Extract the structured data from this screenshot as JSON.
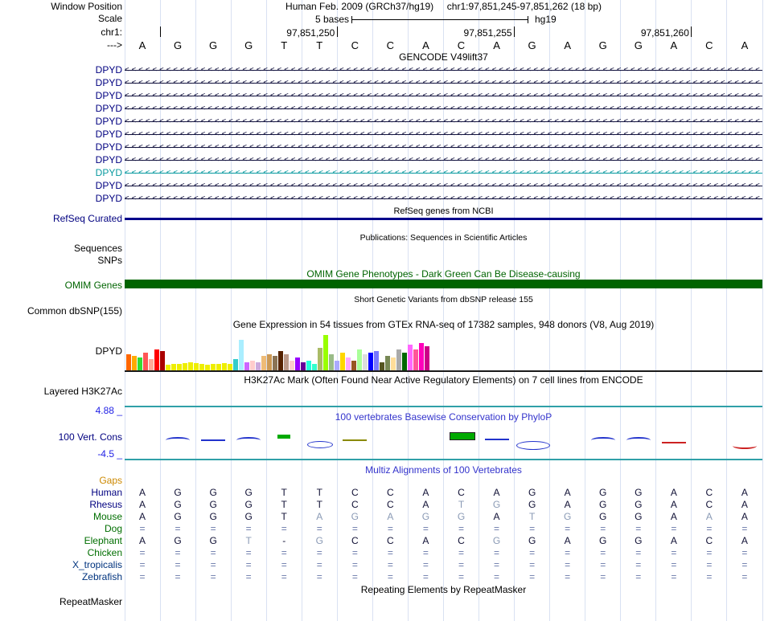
{
  "header": {
    "window_position_label": "Window Position",
    "title": "Human Feb. 2009 (GRCh37/hg19)     chr1:97,851,245-97,851,262 (18 bp)",
    "scale_label": "Scale",
    "scale_value": "5 bases",
    "assembly_label": "hg19",
    "chrom_label": "chr1:",
    "strand_label": "--->",
    "ruler_ticks": [
      {
        "label": "",
        "base_end": 1
      },
      {
        "label": "97,851,250",
        "base_end": 6
      },
      {
        "label": "97,851,255",
        "base_end": 11
      },
      {
        "label": "97,851,260",
        "base_end": 16
      }
    ],
    "reference_bases": [
      "A",
      "G",
      "G",
      "G",
      "T",
      "T",
      "C",
      "C",
      "A",
      "C",
      "A",
      "G",
      "A",
      "G",
      "G",
      "A",
      "C",
      "A"
    ]
  },
  "tracks": {
    "gencode": {
      "title": "GENCODE V49lift37",
      "rows": [
        {
          "label": "DPYD",
          "label_color": "#000080",
          "color": "#12123E"
        },
        {
          "label": "DPYD",
          "label_color": "#000080",
          "color": "#12123E"
        },
        {
          "label": "DPYD",
          "label_color": "#000080",
          "color": "#12123E"
        },
        {
          "label": "DPYD",
          "label_color": "#000080",
          "color": "#12123E"
        },
        {
          "label": "DPYD",
          "label_color": "#000080",
          "color": "#12123E"
        },
        {
          "label": "DPYD",
          "label_color": "#000080",
          "color": "#12123E"
        },
        {
          "label": "DPYD",
          "label_color": "#000080",
          "color": "#12123E"
        },
        {
          "label": "DPYD",
          "label_color": "#000080",
          "color": "#12123E"
        },
        {
          "label": "DPYD",
          "label_color": "#0A9AA0",
          "color": "#0A9AA0"
        },
        {
          "label": "DPYD",
          "label_color": "#000080",
          "color": "#12123E"
        },
        {
          "label": "DPYD",
          "label_color": "#000080",
          "color": "#12123E"
        }
      ]
    },
    "refseq": {
      "label": "RefSeq Curated",
      "title": "RefSeq genes from NCBI",
      "color": "#00008B"
    },
    "publications": {
      "title": "Publications: Sequences in Scientific Articles",
      "sequences_label": "Sequences",
      "snps_label": "SNPs"
    },
    "omim": {
      "label": "OMIM Genes",
      "title": "OMIM Gene Phenotypes - Dark Green Can Be Disease-causing",
      "color": "#006400"
    },
    "dbsnp": {
      "label": "Common dbSNP(155)",
      "title": "Short Genetic Variants from dbSNP release 155"
    },
    "gtex": {
      "label": "DPYD",
      "title": "Gene Expression in 54 tissues from GTEx RNA-seq of 17382 samples, 948 donors (V8, Aug 2019)"
    },
    "h3k27ac": {
      "label": "Layered H3K27Ac",
      "title": "H3K27Ac Mark (Often Found Near Active Regulatory Elements) on 7 cell lines from ENCODE",
      "line_color": "#2FA0A8"
    },
    "phylop": {
      "label": "100 Vert. Cons",
      "title": "100 vertebrates Basewise Conservation by PhyloP",
      "max_label": "4.88 _",
      "min_label": "-4.5 _",
      "marks": [
        {
          "i": 1,
          "v": 0.4,
          "color": "#2233CC",
          "shape": "arc"
        },
        {
          "i": 2,
          "v": 0.25,
          "color": "#2233CC",
          "shape": "line"
        },
        {
          "i": 3,
          "v": 0.3,
          "color": "#2233CC",
          "shape": "arc"
        },
        {
          "i": 4,
          "v": 0.9,
          "color": "#00AA00",
          "shape": "bar_small"
        },
        {
          "i": 5,
          "v": -0.5,
          "color": "#2233CC",
          "shape": "ellipse"
        },
        {
          "i": 6,
          "v": 0.15,
          "color": "#8A8A00",
          "shape": "line"
        },
        {
          "i": 9,
          "v": 1.1,
          "color": "#00AA00",
          "shape": "bar"
        },
        {
          "i": 10,
          "v": 0.3,
          "color": "#2233CC",
          "shape": "line"
        },
        {
          "i": 11,
          "v": -0.7,
          "color": "#2233CC",
          "shape": "ellipse_big"
        },
        {
          "i": 13,
          "v": 0.4,
          "color": "#2233CC",
          "shape": "arc"
        },
        {
          "i": 14,
          "v": 0.35,
          "color": "#2233CC",
          "shape": "arc"
        },
        {
          "i": 15,
          "v": -0.4,
          "color": "#CC2222",
          "shape": "line"
        },
        {
          "i": 17,
          "v": -0.8,
          "color": "#CC2222",
          "shape": "arc_down"
        }
      ]
    },
    "multiz": {
      "title": "Multiz Alignments of 100 Vertebrates",
      "colors": {
        "normal": "#101035",
        "dim": "#8A9AB5",
        "equals": "#6677A8"
      },
      "species": [
        {
          "name": "Gaps",
          "label_color": "#CC8800",
          "cells": [
            "",
            "",
            "",
            "",
            "",
            "",
            "",
            "",
            "",
            "",
            "",
            "",
            "",
            "",
            "",
            "",
            "",
            ""
          ],
          "dim": []
        },
        {
          "name": "Human",
          "label_color": "#000080",
          "cells": [
            "A",
            "G",
            "G",
            "G",
            "T",
            "T",
            "C",
            "C",
            "A",
            "C",
            "A",
            "G",
            "A",
            "G",
            "G",
            "A",
            "C",
            "A"
          ],
          "dim": []
        },
        {
          "name": "Rhesus",
          "label_color": "#000080",
          "cells": [
            "A",
            "G",
            "G",
            "G",
            "T",
            "T",
            "C",
            "C",
            "A",
            "T",
            "G",
            "G",
            "A",
            "G",
            "G",
            "A",
            "C",
            "A"
          ],
          "dim": [
            9,
            10
          ]
        },
        {
          "name": "Mouse",
          "label_color": "#006E00",
          "cells": [
            "A",
            "G",
            "G",
            "G",
            "T",
            "A",
            "G",
            "A",
            "G",
            "G",
            "A",
            "T",
            "G",
            "G",
            "G",
            "A",
            "A",
            "A"
          ],
          "dim": [
            5,
            6,
            7,
            8,
            9,
            11,
            12,
            16
          ]
        },
        {
          "name": "Dog",
          "label_color": "#006E00",
          "cells": [
            "=",
            "=",
            "=",
            "=",
            "=",
            "=",
            "=",
            "=",
            "=",
            "=",
            "=",
            "=",
            "=",
            "=",
            "=",
            "=",
            "=",
            "="
          ],
          "dim": []
        },
        {
          "name": "Elephant",
          "label_color": "#006E00",
          "cells": [
            "A",
            "G",
            "G",
            "T",
            "-",
            "G",
            "C",
            "C",
            "A",
            "C",
            "G",
            "G",
            "A",
            "G",
            "G",
            "A",
            "C",
            "A"
          ],
          "dim": [
            3,
            5,
            10
          ]
        },
        {
          "name": "Chicken",
          "label_color": "#006E00",
          "cells": [
            "=",
            "=",
            "=",
            "=",
            "=",
            "=",
            "=",
            "=",
            "=",
            "=",
            "=",
            "=",
            "=",
            "=",
            "=",
            "=",
            "=",
            "="
          ],
          "dim": []
        },
        {
          "name": "X_tropicalis",
          "label_color": "#00337E",
          "cells": [
            "=",
            "=",
            "=",
            "=",
            "=",
            "=",
            "=",
            "=",
            "=",
            "=",
            "=",
            "=",
            "=",
            "=",
            "=",
            "=",
            "=",
            "="
          ],
          "dim": []
        },
        {
          "name": "Zebrafish",
          "label_color": "#00337E",
          "cells": [
            "=",
            "=",
            "=",
            "=",
            "=",
            "=",
            "=",
            "=",
            "=",
            "=",
            "=",
            "=",
            "=",
            "=",
            "=",
            "=",
            "=",
            "="
          ],
          "dim": []
        }
      ]
    },
    "repeatmasker": {
      "label": "RepeatMasker",
      "title": "Repeating Elements by RepeatMasker"
    }
  },
  "chart_data": [
    {
      "type": "bar",
      "title": "Gene Expression in 54 tissues from GTEx RNA-seq of 17382 samples, 948 donors (V8, Aug 2019)",
      "gene": "DPYD",
      "n_bars": 54,
      "values": [
        20,
        18,
        16,
        22,
        14,
        26,
        24,
        7,
        8,
        8,
        9,
        10,
        9,
        8,
        7,
        8,
        8,
        9,
        8,
        14,
        38,
        10,
        12,
        10,
        18,
        20,
        18,
        24,
        20,
        12,
        16,
        10,
        12,
        8,
        28,
        44,
        20,
        12,
        22,
        16,
        12,
        26,
        20,
        22,
        24,
        10,
        18,
        16,
        26,
        22,
        32,
        26,
        34,
        30
      ],
      "colors": [
        "#FF6600",
        "#FFAA00",
        "#33DD33",
        "#FF5555",
        "#FFAA99",
        "#FF0000",
        "#AA0000",
        "#EEEE00",
        "#EEEE00",
        "#EEEE00",
        "#EEEE00",
        "#EEEE00",
        "#EEEE00",
        "#EEEE00",
        "#EEEE00",
        "#EEEE00",
        "#EEEE00",
        "#EEEE00",
        "#EEEE00",
        "#33CCCC",
        "#AAEEFF",
        "#CC66FF",
        "#FFCCCC",
        "#CCAADD",
        "#EEBB77",
        "#CC9955",
        "#8B7355",
        "#552200",
        "#BB9988",
        "#FFCCCC",
        "#9900FF",
        "#660099",
        "#22FFDD",
        "#33FFCC",
        "#AABB66",
        "#99FF00",
        "#99BB88",
        "#AAAAFF",
        "#FFD700",
        "#FFAAFF",
        "#995522",
        "#AAFF99",
        "#DDDDDD",
        "#0000FF",
        "#7777FF",
        "#555522",
        "#778855",
        "#FFDD99",
        "#AAAAAA",
        "#006600",
        "#FF66FF",
        "#FF5599",
        "#FF00BB",
        "#CC0088"
      ],
      "ylim": [
        0,
        45
      ]
    },
    {
      "type": "line",
      "title": "100 vertebrates Basewise Conservation by PhyloP",
      "x": [
        1,
        2,
        3,
        4,
        5,
        6,
        7,
        8,
        9,
        10,
        11,
        12,
        13,
        14,
        15,
        16,
        17,
        18
      ],
      "values": [
        0,
        0.4,
        0.25,
        0.3,
        0.9,
        -0.5,
        0.15,
        0,
        0,
        1.1,
        0.3,
        -0.7,
        0,
        0.4,
        0.35,
        -0.4,
        0,
        -0.8
      ],
      "ylim": [
        -4.5,
        4.88
      ]
    }
  ]
}
